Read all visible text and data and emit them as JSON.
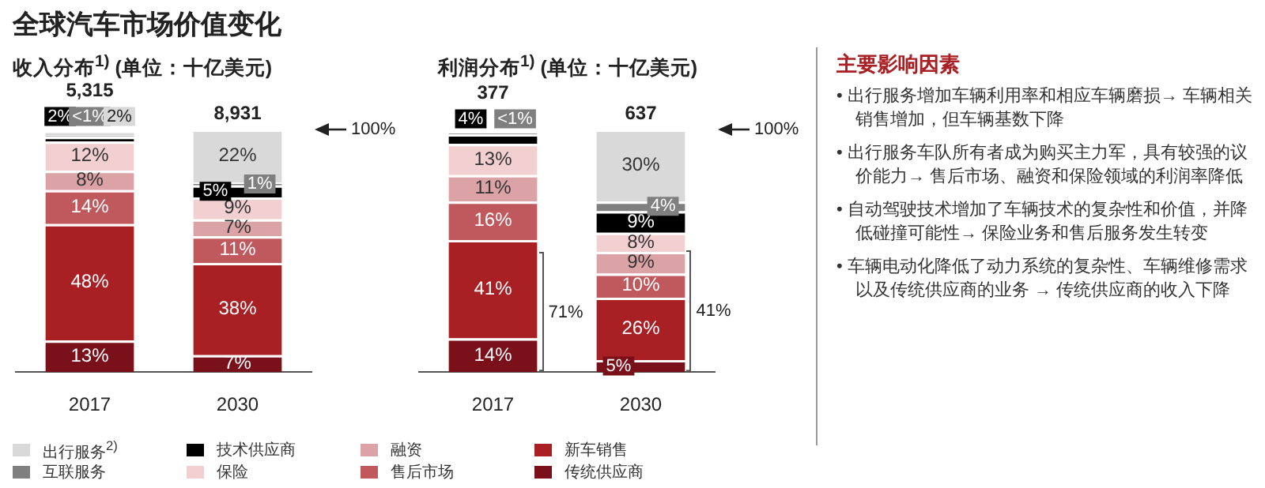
{
  "chart_data": [
    {
      "type": "bar",
      "title": "全球汽车市场价值变化",
      "subtitle": "收入分布$^{1)}$ (单位：十亿美元)",
      "categories": [
        "2017",
        "2030"
      ],
      "stacked": true,
      "legend": "bottom",
      "tick_labels": "x",
      "series": [
        {
          "name": "传统供应商",
          "color": "#7a1019",
          "values": [
            13,
            7
          ],
          "value_labels": [
            "13%",
            "7%"
          ]
        },
        {
          "name": "新车销售",
          "color": "#a81f24",
          "values": [
            48,
            38
          ],
          "value_labels": [
            "48%",
            "38%"
          ]
        },
        {
          "name": "售后市场",
          "color": "#c0595d",
          "values": [
            14,
            11
          ],
          "value_labels": [
            "14%",
            "11%"
          ]
        },
        {
          "name": "融资",
          "color": "#dca3a6",
          "values": [
            8,
            7
          ],
          "value_labels": [
            "8%",
            "7%"
          ]
        },
        {
          "name": "保险",
          "color": "#f2d0d2",
          "values": [
            12,
            9
          ],
          "value_labels": [
            "12%",
            "9%"
          ]
        },
        {
          "name": "技术供应商",
          "color": "#000000",
          "values": [
            2,
            5
          ],
          "value_labels": [
            "2%",
            "5%"
          ]
        },
        {
          "name": "互联服务",
          "color": "#7f7f7f",
          "values": [
            0.5,
            1
          ],
          "value_labels": [
            "<1%",
            "1%"
          ]
        },
        {
          "name": "出行服务$^{2)}$",
          "color": "#d9d9d9",
          "values": [
            2,
            22
          ],
          "value_labels": [
            "2%",
            "22%"
          ]
        }
      ],
      "annotations": [
        {
          "text": "5,315",
          "x": "2017",
          "y": 99.5
        },
        {
          "text": "8,931",
          "x": "2030",
          "y": 100
        },
        "100%"
      ]
    },
    {
      "type": "bar",
      "title": "利润分布$^{1)}$ (单位：十亿美元)",
      "categories": [
        "2017",
        "2030"
      ],
      "stacked": true,
      "tick_labels": "x",
      "series": [
        {
          "color": "#7a1019",
          "values": [
            14,
            5
          ],
          "value_labels": [
            "14%",
            "5%"
          ]
        },
        {
          "color": "#a81f24",
          "values": [
            41,
            26
          ],
          "value_labels": [
            "41%",
            "26%"
          ]
        },
        {
          "color": "#c0595d",
          "values": [
            16,
            10
          ],
          "value_labels": [
            "16%",
            "10%"
          ]
        },
        {
          "color": "#dca3a6",
          "values": [
            11,
            9
          ],
          "value_labels": [
            "11%",
            "9%"
          ]
        },
        {
          "color": "#f2d0d2",
          "values": [
            13,
            8
          ],
          "value_labels": [
            "13%",
            "8%"
          ]
        },
        {
          "color": "#000000",
          "values": [
            4,
            9
          ],
          "value_labels": [
            "4%",
            "9%"
          ]
        },
        {
          "color": "#7f7f7f",
          "values": [
            0.5,
            4
          ],
          "value_labels": [
            "<1%",
            "4%"
          ]
        },
        {
          "color": "#d9d9d9",
          "values": [
            null,
            30
          ],
          "value_labels": [
            null,
            "30%"
          ]
        }
      ],
      "annotations": [
        {
          "text": "377",
          "x": "2017",
          "y": 99.5
        },
        {
          "text": "637",
          "x": "2030",
          "y": 101
        },
        "100%",
        "71%",
        "41%"
      ]
    },
    {
      "type": "other",
      "title": "主要影响因素",
      "annotations": [
        "• 出行服务增加车辆利用率和相应车辆磨损→ 车辆相关销售增加，但车辆基数下降",
        "• 出行服务车队所有者成为购买主力军，具有较强的议价能力→ 售后市场、融资和保险领域的利润率降低",
        "• 自动驾驶技术增加了车辆技术的复杂性和价值，并降低碰撞可能性→ 保险业务和售后服务发生转变",
        "• 车辆电动化降低了动力系统的复杂性、车辆维修需求以及传统供应商的业务 → 传统供应商的收入下降"
      ]
    }
  ]
}
